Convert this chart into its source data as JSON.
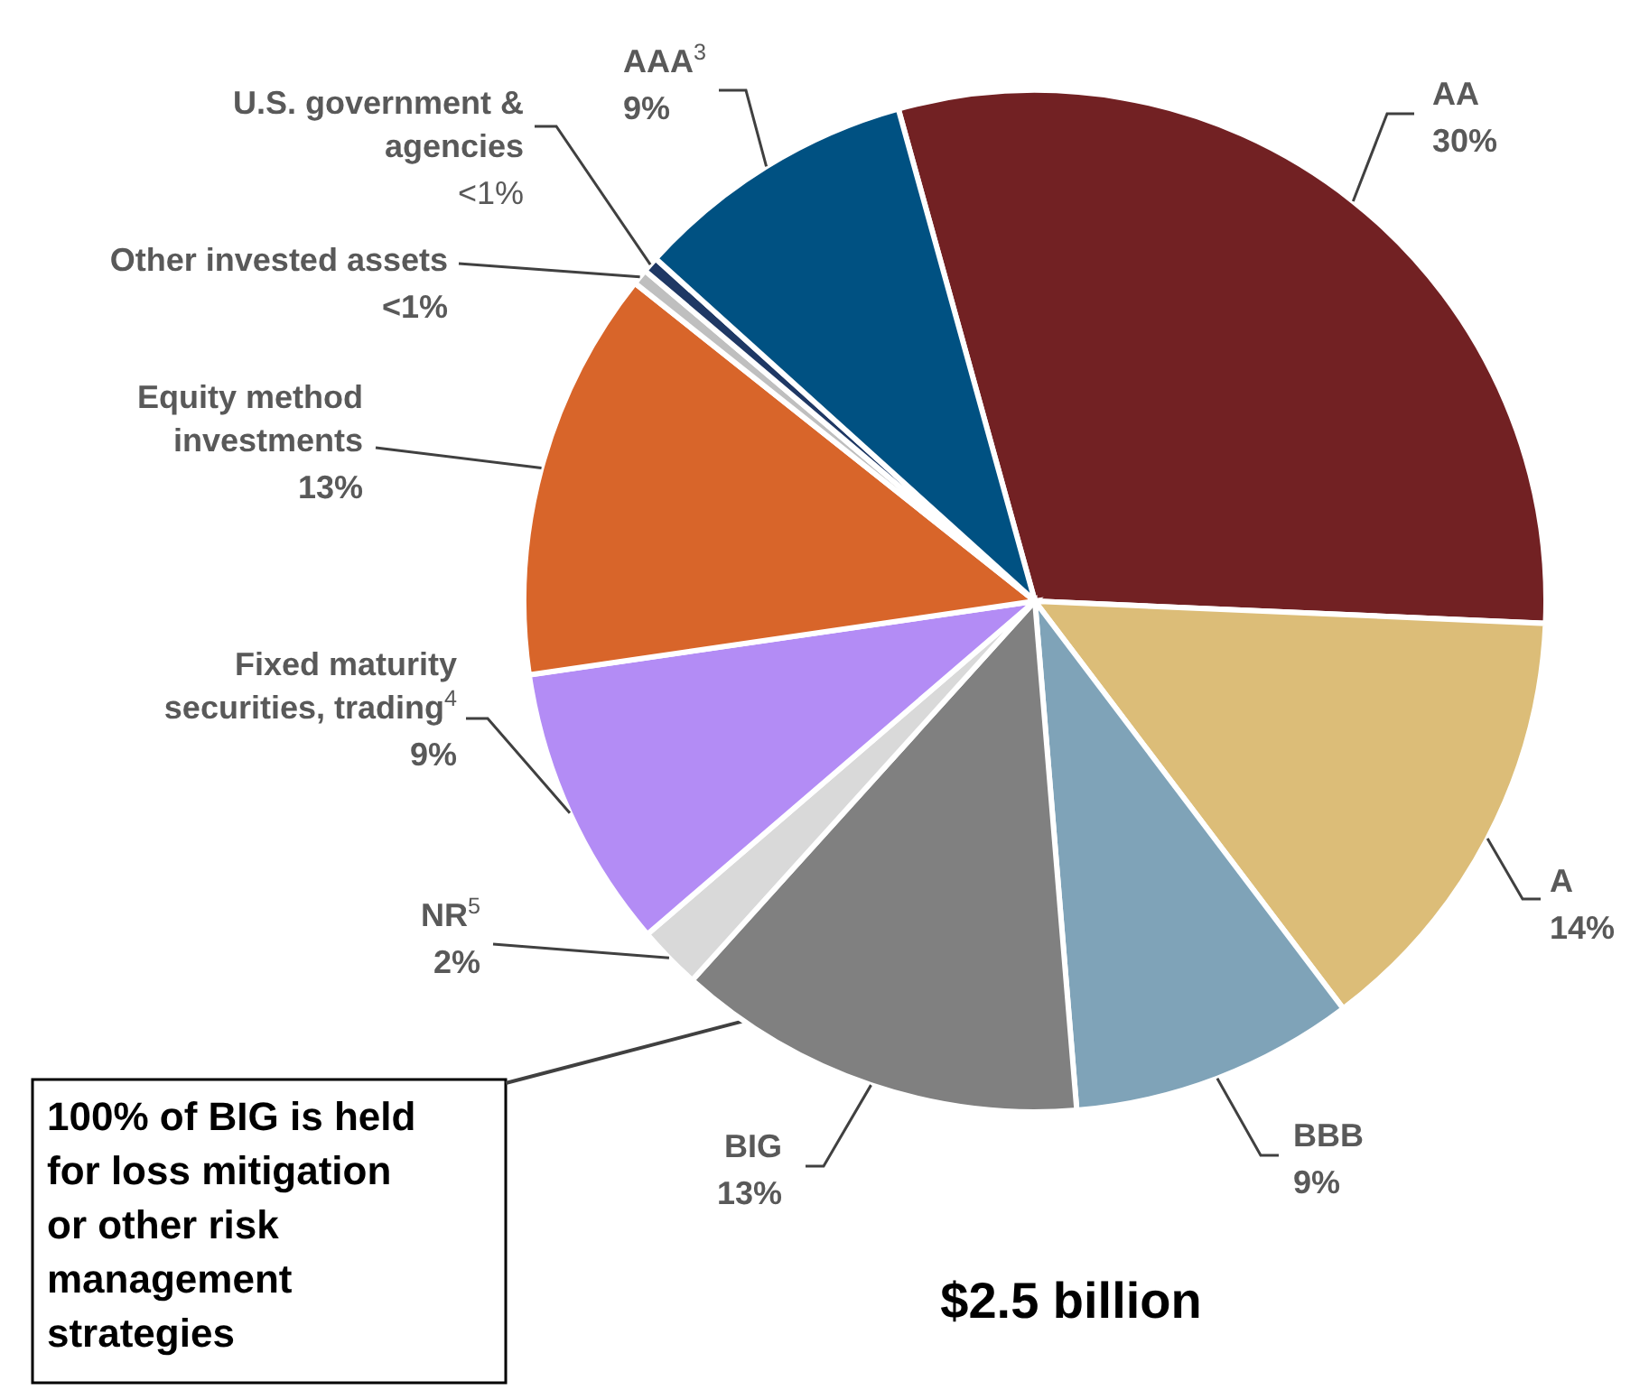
{
  "chart_data": {
    "type": "pie",
    "title": "$2.5 billion",
    "categories": [
      "AA",
      "A",
      "BBB",
      "BIG",
      "NR$^{5}$",
      "Fixed maturity securities, trading$^{4}$",
      "Equity method investments",
      "Other invested assets",
      "U.S. government & agencies",
      "AAA$^{3}$"
    ],
    "values": [
      30,
      14,
      9,
      13,
      2,
      9,
      13,
      0.5,
      0.5,
      9
    ],
    "value_labels": [
      "30%",
      "14%",
      "9%",
      "13%",
      "2%",
      "9%",
      "13%",
      "<1%",
      "<1%",
      "9%"
    ],
    "colors": [
      "#722123",
      "#dcbd78",
      "#7fa3b8",
      "#808080",
      "#d9d9d9",
      "#b38cf5",
      "#d8652a",
      "#bfbfbf",
      "#1f3864",
      "#005182"
    ],
    "annotations": [
      {
        "text": "100% of BIG is held for loss mitigation or other risk management strategies",
        "x": "BIG"
      }
    ]
  }
}
